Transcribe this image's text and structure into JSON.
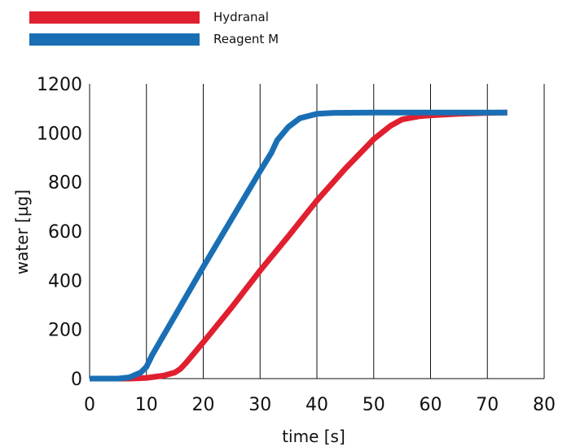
{
  "chart_data": {
    "type": "line",
    "xlabel": "time [s]",
    "ylabel": "water [µg]",
    "xlim": [
      0,
      80
    ],
    "ylim": [
      0,
      1200
    ],
    "xticks": [
      0,
      10,
      20,
      30,
      40,
      50,
      60,
      70,
      80
    ],
    "yticks": [
      0,
      200,
      400,
      600,
      800,
      1000,
      1200
    ],
    "grid": "vertical",
    "legend_position": "top-left",
    "series": [
      {
        "name": "Hydranal",
        "color": "#e0202f",
        "points": [
          [
            0,
            0
          ],
          [
            5,
            0
          ],
          [
            7,
            0
          ],
          [
            10,
            3
          ],
          [
            13,
            12
          ],
          [
            15,
            25
          ],
          [
            16,
            40
          ],
          [
            17,
            65
          ],
          [
            20,
            148
          ],
          [
            25,
            290
          ],
          [
            30,
            440
          ],
          [
            35,
            580
          ],
          [
            40,
            725
          ],
          [
            45,
            855
          ],
          [
            50,
            975
          ],
          [
            53,
            1030
          ],
          [
            55,
            1055
          ],
          [
            58,
            1068
          ],
          [
            60,
            1072
          ],
          [
            65,
            1078
          ],
          [
            70,
            1082
          ],
          [
            73.5,
            1083
          ]
        ]
      },
      {
        "name": "Reagent M",
        "color": "#1a6fb4",
        "points": [
          [
            0,
            0
          ],
          [
            5,
            0
          ],
          [
            7,
            5
          ],
          [
            8,
            15
          ],
          [
            9,
            25
          ],
          [
            10,
            48
          ],
          [
            11,
            95
          ],
          [
            15,
            255
          ],
          [
            20,
            455
          ],
          [
            25,
            650
          ],
          [
            30,
            845
          ],
          [
            32,
            920
          ],
          [
            33,
            970
          ],
          [
            35,
            1025
          ],
          [
            37,
            1060
          ],
          [
            40,
            1078
          ],
          [
            43,
            1082
          ],
          [
            50,
            1083
          ],
          [
            60,
            1083
          ],
          [
            70,
            1083
          ],
          [
            73.5,
            1083
          ]
        ]
      }
    ]
  }
}
